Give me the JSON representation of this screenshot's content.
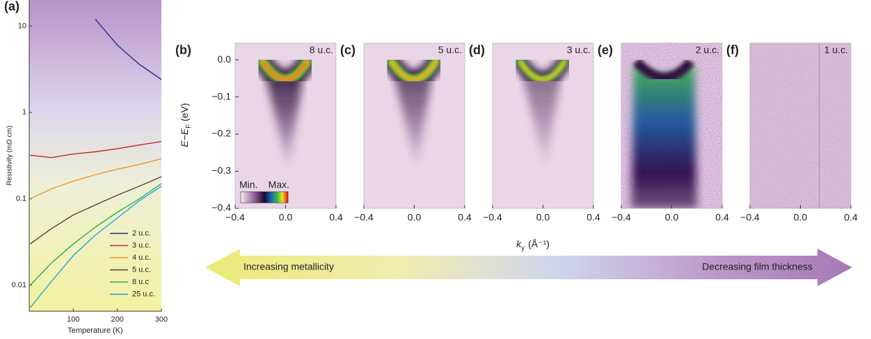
{
  "chart_data": [
    {
      "type": "line",
      "panel_label": "(a)",
      "ylabel": "Resistivity (mΩ cm)",
      "xlabel": "Temperature (K)",
      "log_y": true,
      "xlim": [
        0,
        300
      ],
      "ylim": [
        0.005,
        20
      ],
      "xticks": [
        100,
        200,
        300
      ],
      "yticks": [
        0.01,
        0.1,
        1,
        10
      ],
      "x": [
        2,
        50,
        100,
        150,
        200,
        250,
        300
      ],
      "series": [
        {
          "name": "2 u.c.",
          "color": "#2b2a8c",
          "values": [
            null,
            null,
            null,
            12,
            6,
            3.6,
            2.4
          ]
        },
        {
          "name": "3 u.c.",
          "color": "#c1272d",
          "values": [
            0.32,
            0.3,
            0.33,
            0.35,
            0.38,
            0.42,
            0.46
          ]
        },
        {
          "name": "4 u.c.",
          "color": "#f7941d",
          "values": [
            0.1,
            0.13,
            0.16,
            0.19,
            0.22,
            0.25,
            0.29
          ]
        },
        {
          "name": "5 u.c.",
          "color": "#5a3e2b",
          "values": [
            0.03,
            0.045,
            0.065,
            0.085,
            0.11,
            0.14,
            0.18
          ]
        },
        {
          "name": "8 u.c",
          "color": "#2bb04a",
          "values": [
            0.01,
            0.018,
            0.03,
            0.047,
            0.07,
            0.1,
            0.15
          ]
        },
        {
          "name": "25 u.c.",
          "color": "#1ea7d6",
          "values": [
            0.0055,
            0.011,
            0.022,
            0.038,
            0.06,
            0.095,
            0.14
          ]
        }
      ]
    },
    {
      "type": "heatmap",
      "ylabel": {
        "main": "E−E",
        "sub": "F",
        "unit": "(eV)"
      },
      "xlabel": {
        "main": "k",
        "sub": "y",
        "unit": "(Å⁻¹)"
      },
      "xlim": [
        -0.4,
        0.4
      ],
      "ylim": [
        -0.4,
        0.045
      ],
      "xticks": [
        {
          "value": -0.4,
          "label": "−0.4"
        },
        {
          "value": 0,
          "label": "0.0"
        },
        0.4
      ],
      "yticks": [
        {
          "value": 0,
          "label": "0.0"
        },
        {
          "value": -0.1,
          "label": "−0.1"
        },
        {
          "value": -0.2,
          "label": "−0.2"
        },
        {
          "value": -0.3,
          "label": "−0.3"
        },
        {
          "value": -0.4,
          "label": "−0.4"
        }
      ],
      "colorbar": {
        "min_label": "Min.",
        "max_label": "Max."
      },
      "panels": [
        {
          "label": "(b)",
          "title": "8 u.c."
        },
        {
          "label": "(c)",
          "title": "5 u.c."
        },
        {
          "label": "(d)",
          "title": "3 u.c."
        },
        {
          "label": "(e)",
          "title": "2 u.c."
        },
        {
          "label": "(f)",
          "title": "1 u.c."
        }
      ]
    }
  ],
  "arrow": {
    "left": "Increasing metallicity",
    "right": "Decreasing film thickness"
  }
}
